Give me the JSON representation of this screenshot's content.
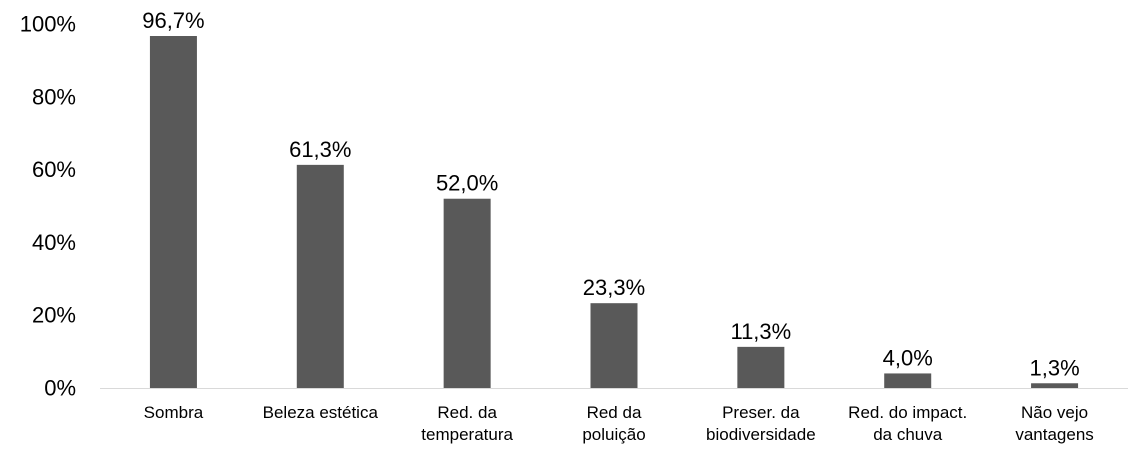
{
  "chart_data": {
    "type": "bar",
    "categories": [
      [
        "Sombra"
      ],
      [
        "Beleza estética"
      ],
      [
        "Red. da",
        "temperatura"
      ],
      [
        "Red da",
        "poluição"
      ],
      [
        "Preser. da",
        "biodiversidade"
      ],
      [
        "Red. do impact.",
        "da chuva"
      ],
      [
        "Não vejo",
        "vantagens"
      ]
    ],
    "values": [
      96.7,
      61.3,
      52.0,
      23.3,
      11.3,
      4.0,
      1.3
    ],
    "data_labels": [
      "96,7%",
      "61,3%",
      "52,0%",
      "23,3%",
      "11,3%",
      "4,0%",
      "1,3%"
    ],
    "title": "",
    "xlabel": "",
    "ylabel": "",
    "ylim": [
      0,
      100
    ],
    "yticks": [
      0,
      20,
      40,
      60,
      80,
      100
    ],
    "ytick_labels": [
      "0%",
      "20%",
      "40%",
      "60%",
      "80%",
      "100%"
    ],
    "grid": false,
    "legend": "none",
    "colors": {
      "bar": "#595959",
      "axis": "#d9d9d9",
      "text": "#000000"
    }
  }
}
